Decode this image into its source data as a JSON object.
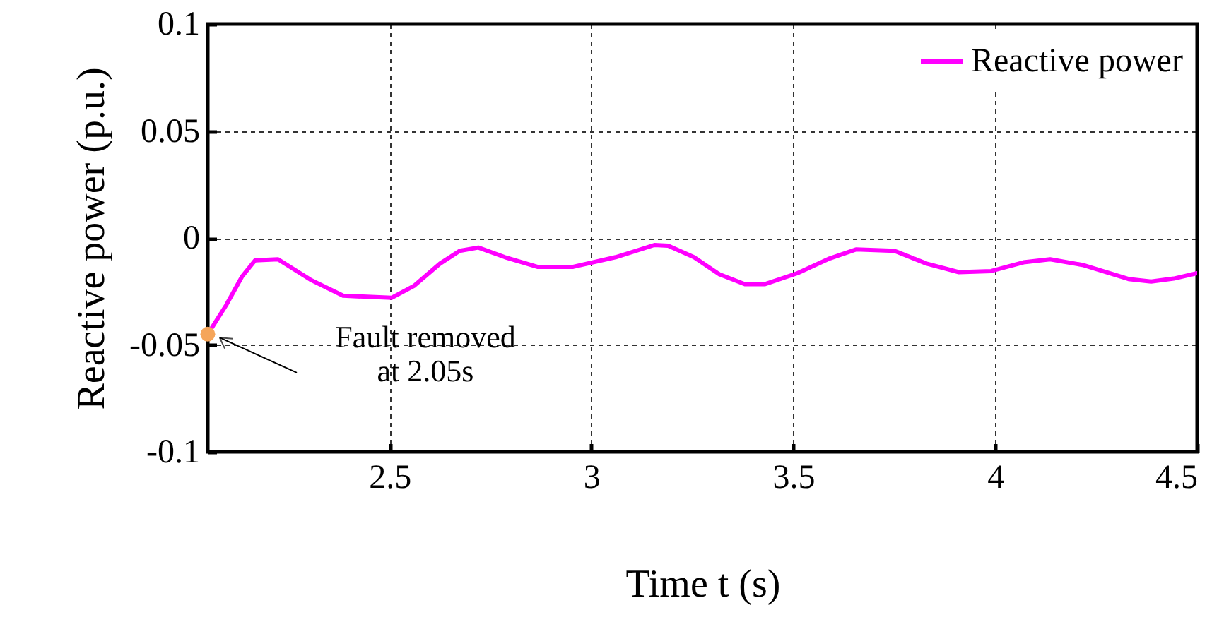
{
  "chart_data": {
    "type": "line",
    "xlabel": "Time t (s)",
    "ylabel": "Reactive power (p.u.)",
    "x": [
      2.05,
      2.095,
      2.135,
      2.167,
      2.224,
      2.304,
      2.385,
      2.505,
      2.56,
      2.625,
      2.674,
      2.72,
      2.786,
      2.866,
      2.955,
      3.06,
      3.156,
      3.19,
      3.254,
      3.317,
      3.38,
      3.43,
      3.51,
      3.59,
      3.655,
      3.75,
      3.83,
      3.91,
      3.99,
      4.07,
      4.136,
      4.216,
      4.33,
      4.386,
      4.442,
      4.5
    ],
    "series": [
      {
        "name": "Reactive power",
        "color": "#ff00ff",
        "values": [
          -0.045,
          -0.0316,
          -0.018,
          -0.0105,
          -0.01,
          -0.0195,
          -0.027,
          -0.028,
          -0.0225,
          -0.012,
          -0.006,
          -0.0045,
          -0.009,
          -0.0135,
          -0.0135,
          -0.009,
          -0.0033,
          -0.0036,
          -0.009,
          -0.017,
          -0.0216,
          -0.0216,
          -0.0165,
          -0.0096,
          -0.0054,
          -0.006,
          -0.012,
          -0.016,
          -0.0155,
          -0.0114,
          -0.01,
          -0.0126,
          -0.0192,
          -0.0204,
          -0.019,
          -0.0165
        ]
      }
    ],
    "xlim": [
      2.05,
      4.5
    ],
    "xticks": [
      2.5,
      3,
      3.5,
      4,
      4.5
    ],
    "ylim": [
      -0.1,
      0.1
    ],
    "yticks": [
      -0.1,
      -0.05,
      0,
      0.05,
      0.1
    ],
    "annotations": [
      {
        "text": "Fault removed\nat 2.05s",
        "x": 2.05,
        "y": -0.045
      }
    ],
    "grid": true,
    "legend": "top right",
    "line_style": "solid",
    "marker": "none"
  }
}
